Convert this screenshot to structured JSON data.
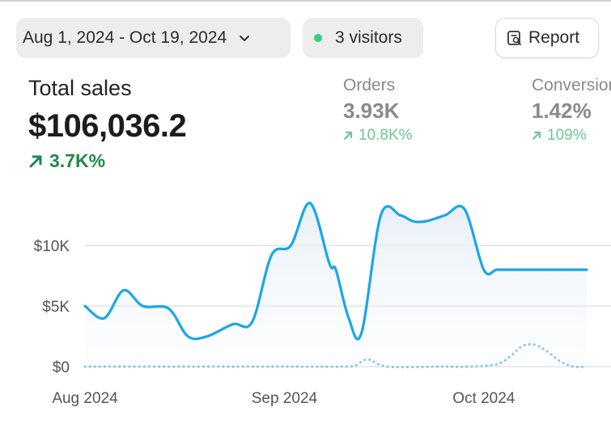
{
  "filters": {
    "date_range": "Aug 1, 2024 - Oct 19, 2024",
    "visitors": "3 visitors",
    "report_label": "Report"
  },
  "metrics": {
    "total_sales": {
      "label": "Total sales",
      "value": "$106,036.2",
      "change": "3.7K%"
    },
    "orders": {
      "label": "Orders",
      "value": "3.93K",
      "change": "10.8K%"
    },
    "conversion": {
      "label": "Conversion",
      "value": "1.42%",
      "change": "109%"
    }
  },
  "colors": {
    "primary_line": "#1aa7e6",
    "comparison_line": "#7cc7ea",
    "positive": "#1e8a4a",
    "live_dot": "#35d07f"
  },
  "chart_data": {
    "type": "line",
    "xlabel": "",
    "ylabel": "",
    "x_tick_labels": [
      "Aug 2024",
      "Sep 2024",
      "Oct 2024"
    ],
    "y_tick_labels": [
      "$0",
      "$5K",
      "$10K"
    ],
    "y_ticks": [
      0,
      5000,
      10000
    ],
    "ylim": [
      0,
      14000
    ],
    "grid": true,
    "series": [
      {
        "style": "solid-area",
        "x": [
          0,
          3,
          6,
          9,
          13,
          16,
          19,
          23,
          26,
          29,
          32,
          35,
          38,
          39,
          41,
          43,
          46,
          49,
          51,
          53,
          56,
          59,
          62,
          64,
          66,
          68,
          70,
          73,
          76,
          78
        ],
        "values": [
          5000,
          4000,
          6300,
          5000,
          4800,
          2500,
          2500,
          3500,
          3700,
          9200,
          10000,
          13500,
          8500,
          8000,
          4000,
          2800,
          12500,
          12500,
          12000,
          12000,
          12500,
          13000,
          8000,
          8000,
          8000,
          8000,
          8000,
          8000,
          8000,
          8000
        ]
      },
      {
        "style": "dotted",
        "x": [
          0,
          10,
          20,
          30,
          40,
          42,
          44,
          47,
          55,
          60,
          64,
          66,
          68,
          70,
          72,
          74,
          76,
          78
        ],
        "values": [
          0,
          0,
          0,
          0,
          0,
          100,
          600,
          0,
          0,
          0,
          200,
          800,
          1700,
          1800,
          1200,
          400,
          0,
          0
        ]
      }
    ]
  }
}
